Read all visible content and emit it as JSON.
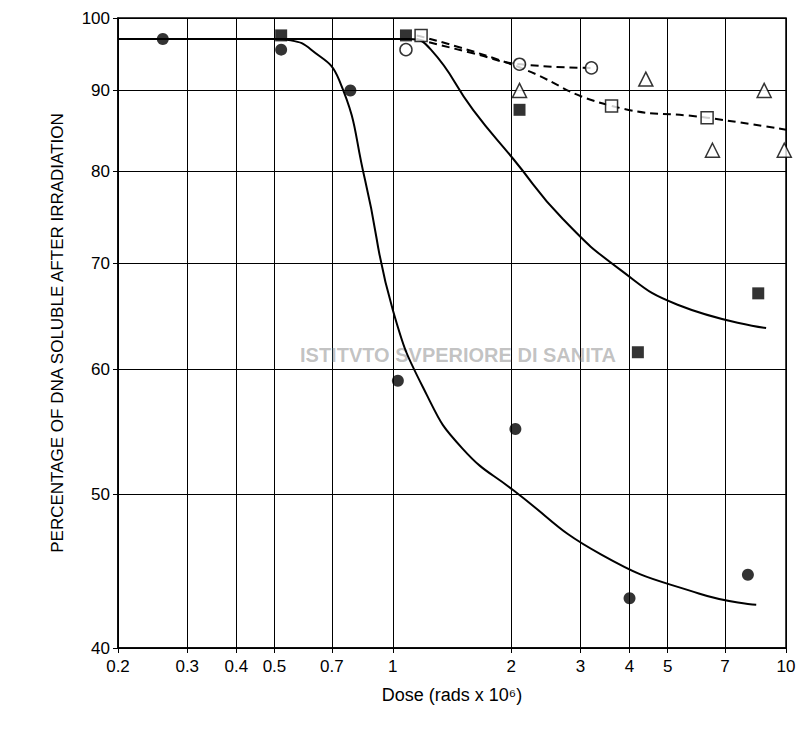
{
  "chart_data": {
    "type": "line",
    "x_label": "Dose (rads x 10⁶)",
    "y_label": "PERCENTAGE OF DNA SOLUBLE AFTER IRRADIATION",
    "annotations": [
      {
        "text": "ISTITVTO SVPERIORE DI SANITA"
      }
    ],
    "log": true,
    "grid": true,
    "xlim": [
      0.2,
      10
    ],
    "xticks": [
      0.2,
      0.3,
      0.4,
      0.5,
      0.7,
      1,
      2,
      3,
      4,
      5,
      7,
      10
    ],
    "ylim": [
      40,
      100
    ],
    "yticks": [
      40,
      50,
      60,
      70,
      80,
      90,
      100
    ],
    "series": [
      {
        "type": "scatter",
        "marker": "filled_circle",
        "color": "#000000",
        "x": [
          0.26,
          0.52,
          0.78,
          1.03,
          2.05,
          4.0,
          8.0
        ],
        "values": [
          97,
          95.5,
          90,
          59,
          55,
          43,
          44.5
        ]
      },
      {
        "type": "line",
        "marker": "none",
        "line_style": "solid",
        "color": "#000000",
        "x": [
          0.2,
          0.5,
          0.55,
          0.62,
          0.73,
          0.85,
          1.0,
          1.22,
          1.5,
          2.03,
          3.4,
          6.0,
          8.4
        ],
        "values": [
          97,
          97,
          96.8,
          95.5,
          91.4,
          79,
          65.4,
          57.8,
          53.5,
          50.3,
          45.8,
          43.3,
          42.6
        ]
      },
      {
        "type": "scatter",
        "marker": "filled_square",
        "color": "#000000",
        "x": [
          0.52,
          1.08,
          2.1,
          4.2,
          8.5
        ],
        "values": [
          97.5,
          97.5,
          87.5,
          61.5,
          67
        ]
      },
      {
        "type": "line",
        "marker": "none",
        "line_style": "solid",
        "color": "#000000",
        "x": [
          0.2,
          1.1,
          1.25,
          1.6,
          2.03,
          2.7,
          3.8,
          5.3,
          8.9
        ],
        "values": [
          97,
          97,
          95.5,
          87.5,
          81.4,
          74.7,
          69.3,
          65.9,
          63.7
        ]
      },
      {
        "type": "scatter",
        "marker": "open_circle",
        "color": "#000000",
        "x": [
          1.08,
          2.1,
          3.2
        ],
        "values": [
          95.5,
          93.5,
          93
        ]
      },
      {
        "type": "line",
        "marker": "none",
        "line_style": "dashed",
        "color": "#000000",
        "x": [
          1.15,
          1.6,
          2.1,
          3.2
        ],
        "values": [
          97,
          95,
          93.5,
          93
        ]
      },
      {
        "type": "scatter",
        "marker": "open_square",
        "color": "#000000",
        "x": [
          1.18,
          3.6,
          6.3
        ],
        "values": [
          97.5,
          88,
          86.5
        ]
      },
      {
        "type": "line",
        "marker": "none",
        "line_style": "dashed",
        "color": "#000000",
        "x": [
          1.15,
          2.0,
          3.6,
          6.3,
          10
        ],
        "values": [
          97.5,
          93.5,
          88,
          86.5,
          85
        ]
      },
      {
        "type": "scatter",
        "marker": "open_triangle",
        "color": "#000000",
        "x": [
          2.1,
          4.4,
          6.5,
          8.8,
          9.9
        ],
        "values": [
          90,
          91.5,
          82.5,
          90,
          82.5
        ]
      }
    ]
  }
}
